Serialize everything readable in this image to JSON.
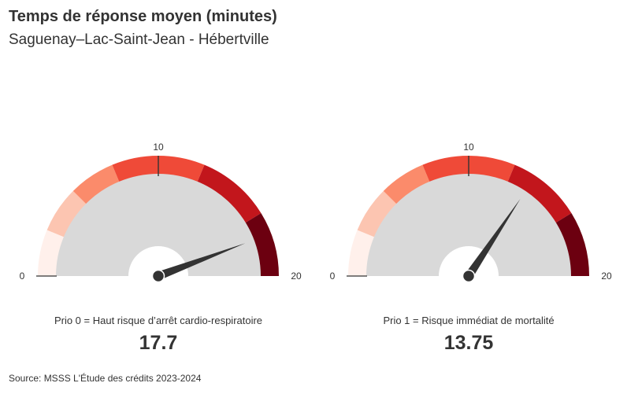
{
  "header": {
    "title": "Temps de réponse moyen (minutes)",
    "subtitle": "Saguenay–Lac-Saint-Jean - Hébertville"
  },
  "footer": {
    "source": "Source: MSSS L'Étude des crédits 2023-2024"
  },
  "colors": {
    "bands": [
      "#fff0eb",
      "#fcc5b1",
      "#fb8b6b",
      "#ef4a38",
      "#c2161c",
      "#6c0010"
    ],
    "track": "#d9d9d9",
    "needle": "#333333",
    "text": "#333333"
  },
  "chart_data": [
    {
      "type": "gauge",
      "min": 0,
      "max": 20,
      "mid": 10,
      "tick_labels": [
        "0",
        "10",
        "20"
      ],
      "bands": [
        [
          0,
          2.5
        ],
        [
          2.5,
          5
        ],
        [
          5,
          7.5
        ],
        [
          7.5,
          12.5
        ],
        [
          12.5,
          16.5
        ],
        [
          16.5,
          20
        ]
      ],
      "value": 17.7,
      "value_label": "17.7",
      "caption": "Prio 0 = Haut risque d’arrêt cardio-respiratoire"
    },
    {
      "type": "gauge",
      "min": 0,
      "max": 20,
      "mid": 10,
      "tick_labels": [
        "0",
        "10",
        "20"
      ],
      "bands": [
        [
          0,
          2.5
        ],
        [
          2.5,
          5
        ],
        [
          5,
          7.5
        ],
        [
          7.5,
          12.5
        ],
        [
          12.5,
          16.5
        ],
        [
          16.5,
          20
        ]
      ],
      "value": 13.75,
      "value_label": "13.75",
      "caption": "Prio 1 = Risque immédiat de mortalité"
    }
  ]
}
